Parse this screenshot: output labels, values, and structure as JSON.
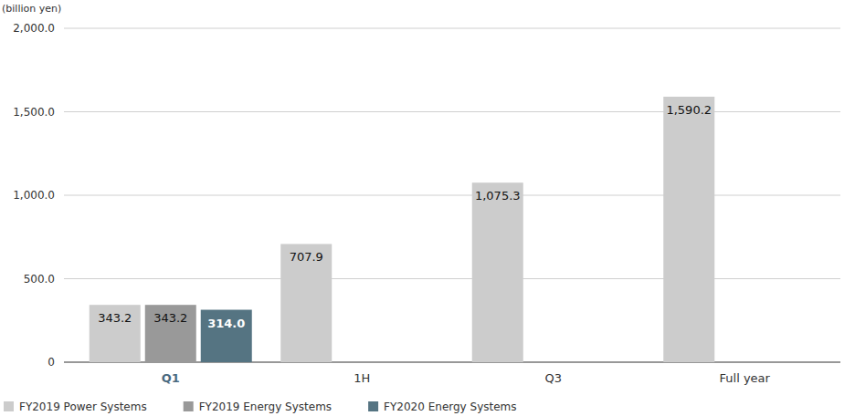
{
  "chart_data": {
    "type": "bar",
    "y_label": "(billion yen)",
    "categories": [
      "Q1",
      "1H",
      "Q3",
      "Full year"
    ],
    "series": [
      {
        "name": "FY2019 Power Systems",
        "color": "#cccccc",
        "values": [
          343.2,
          707.9,
          1075.3,
          1590.2
        ],
        "value_labels": [
          "343.2",
          "707.9",
          "1,075.3",
          "1,590.2"
        ]
      },
      {
        "name": "FY2019 Energy Systems",
        "color": "#999999",
        "values": [
          343.2,
          null,
          null,
          null
        ],
        "value_labels": [
          "343.2",
          null,
          null,
          null
        ]
      },
      {
        "name": "FY2020 Energy Systems",
        "color": "#557482",
        "values": [
          314.0,
          null,
          null,
          null
        ],
        "value_labels": [
          "314.0",
          null,
          null,
          null
        ]
      }
    ],
    "ylim": [
      0,
      2000
    ],
    "yticks": [
      {
        "value": 0,
        "label": "0"
      },
      {
        "value": 500,
        "label": "500.0"
      },
      {
        "value": 1000,
        "label": "1,000.0"
      },
      {
        "value": 1500,
        "label": "1,500.0"
      },
      {
        "value": 2000,
        "label": "2,000.0"
      }
    ],
    "grid": true,
    "legend": "bottom",
    "data_labels": true
  }
}
